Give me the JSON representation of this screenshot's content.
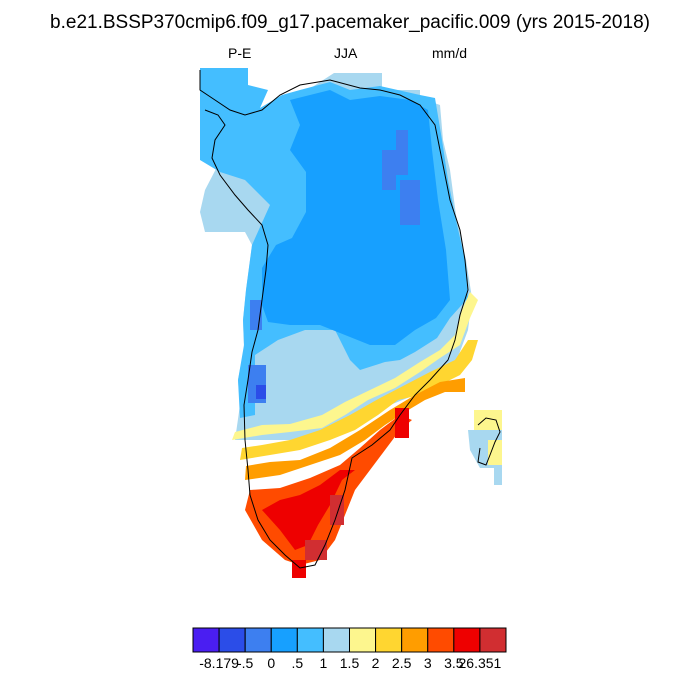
{
  "title": "b.e21.BSSP370cmip6.f09_g17.pacemaker_pacific.009 (yrs 2015-2018)",
  "subtitle_left": "P-E",
  "subtitle_center": "JJA",
  "subtitle_right": "mm/d",
  "colorbar": {
    "colors": [
      "#4a1ef2",
      "#2b4de8",
      "#3d7ff0",
      "#17a0ff",
      "#44beff",
      "#a8d8f0",
      "#fdf68e",
      "#ffd630",
      "#ff9d00",
      "#ff4b00",
      "#ee0000",
      "#d12e31"
    ],
    "tick_labels": [
      "-8.179",
      "-.5",
      "0",
      ".5",
      "1",
      "1.5",
      "2",
      "2.5",
      "3",
      "3.5",
      "26.351"
    ]
  }
}
